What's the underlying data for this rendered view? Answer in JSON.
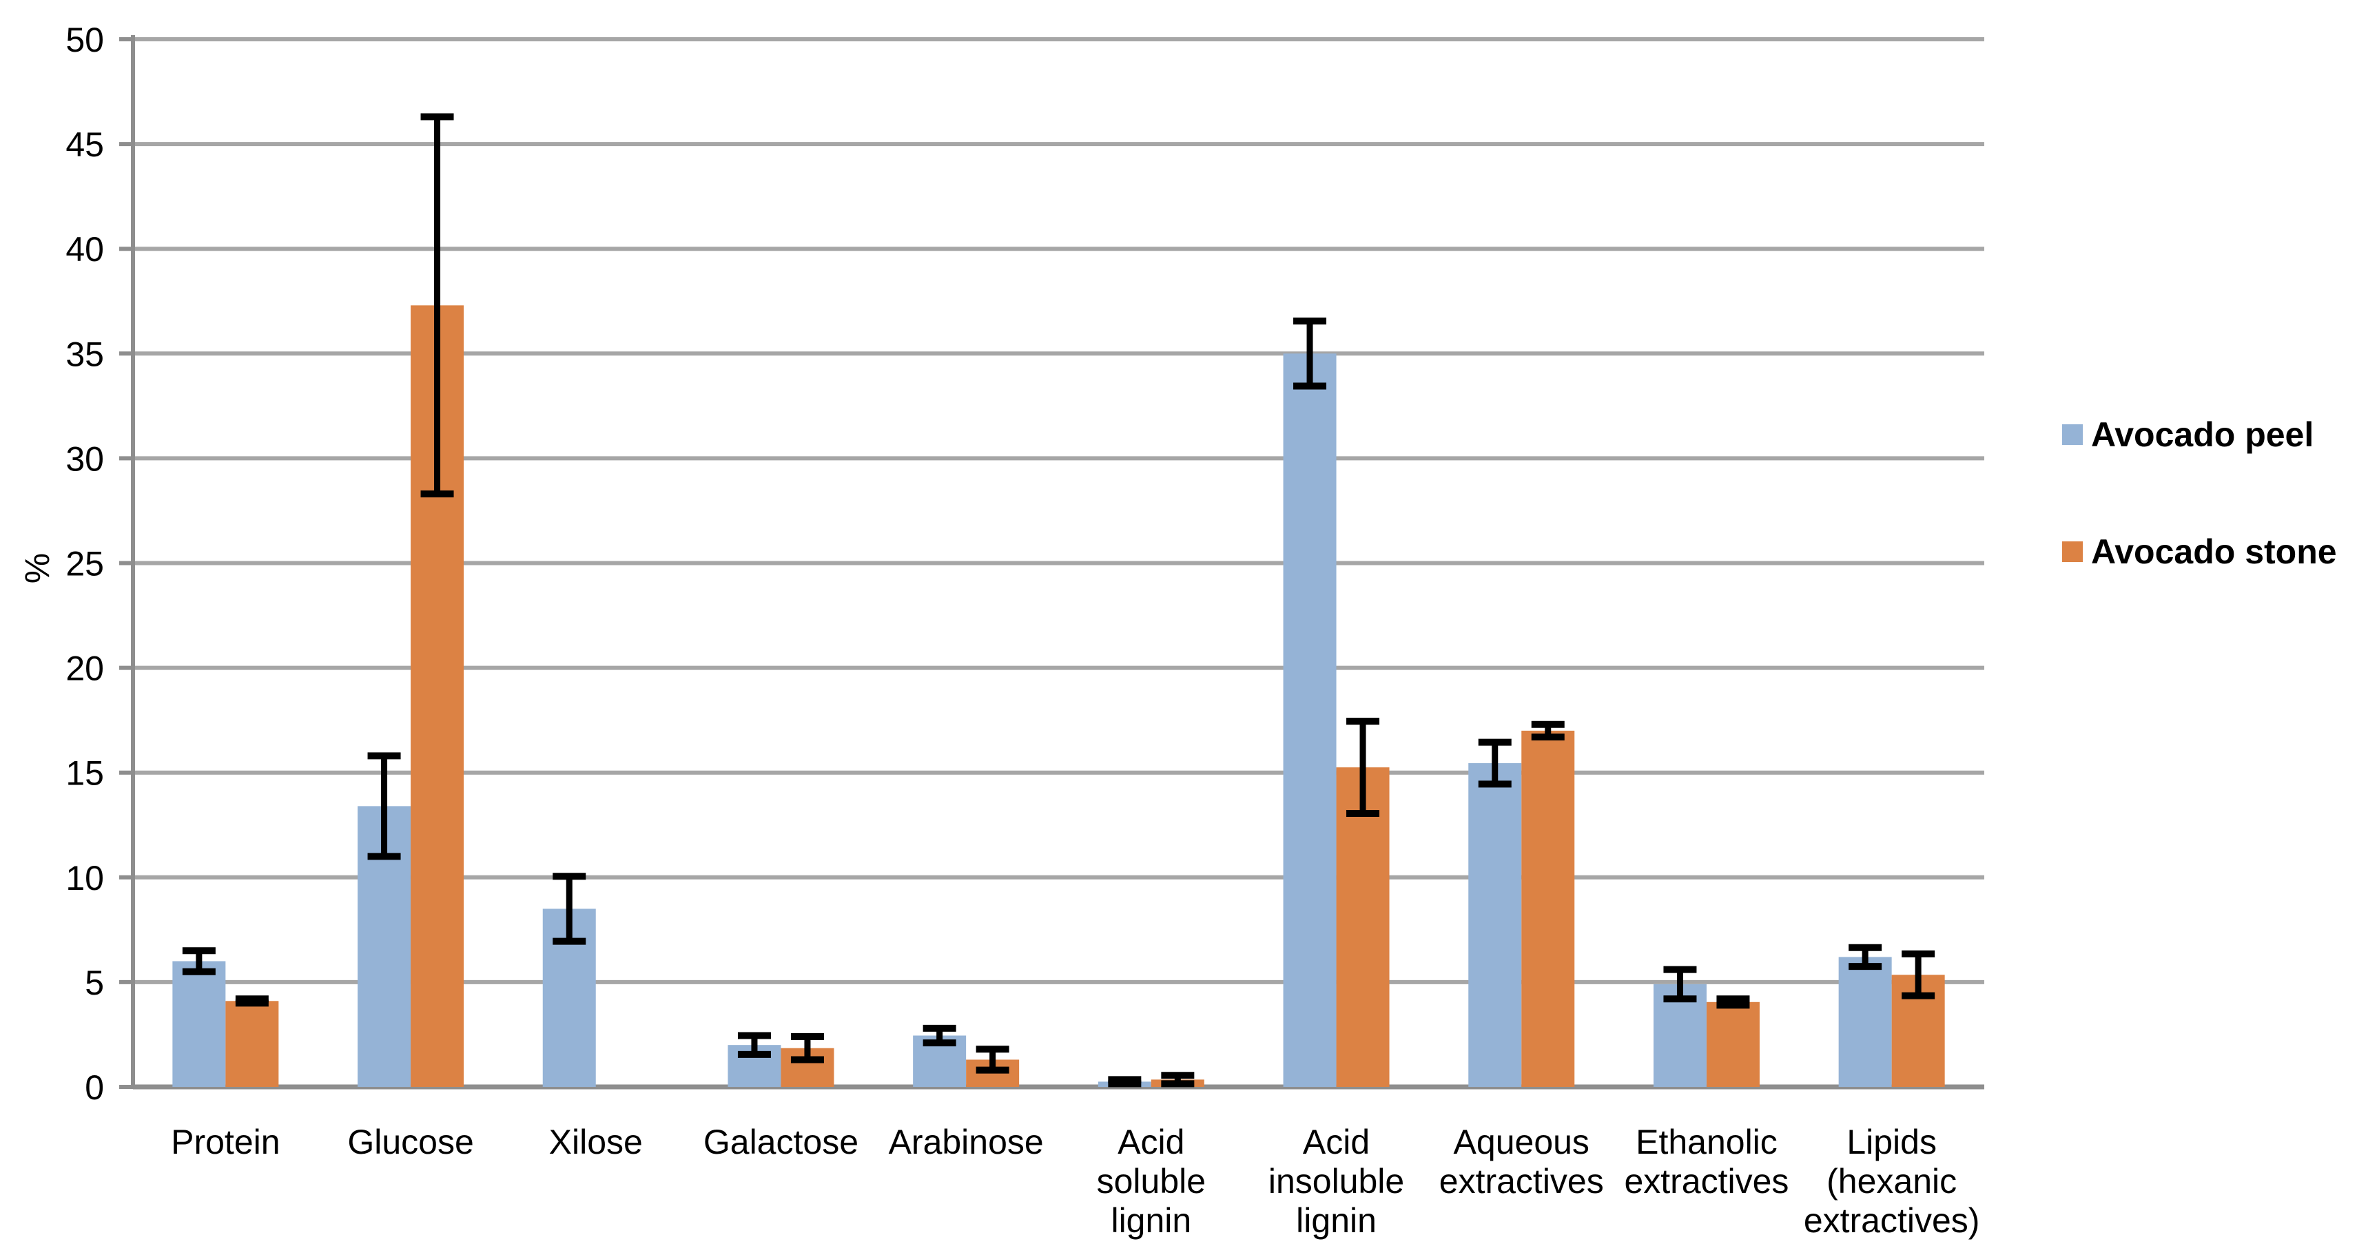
{
  "chart_data": {
    "type": "bar",
    "title": "",
    "ylabel": "%",
    "ylim": [
      0,
      50
    ],
    "ytick_step": 5,
    "grid": true,
    "legend_position": "right",
    "categories": [
      {
        "name": "Protein",
        "label_lines": [
          "Protein"
        ]
      },
      {
        "name": "Glucose",
        "label_lines": [
          "Glucose"
        ]
      },
      {
        "name": "Xilose",
        "label_lines": [
          "Xilose"
        ]
      },
      {
        "name": "Galactose",
        "label_lines": [
          "Galactose"
        ]
      },
      {
        "name": "Arabinose",
        "label_lines": [
          "Arabinose"
        ]
      },
      {
        "name": "Acid soluble lignin",
        "label_lines": [
          "Acid",
          "soluble",
          "lignin"
        ]
      },
      {
        "name": "Acid insoluble lignin",
        "label_lines": [
          "Acid",
          "insoluble",
          "lignin"
        ]
      },
      {
        "name": "Aqueous extractives",
        "label_lines": [
          "Aqueous",
          "extractives"
        ]
      },
      {
        "name": "Ethanolic extractives",
        "label_lines": [
          "Ethanolic",
          "extractives"
        ]
      },
      {
        "name": "Lipids (hexanic extractives)",
        "label_lines": [
          "Lipids",
          "(hexanic",
          "extractives)"
        ]
      }
    ],
    "series": [
      {
        "name": "Avocado peel",
        "color": "#95B3D6",
        "values": [
          6.0,
          13.4,
          8.5,
          2.0,
          2.45,
          0.25,
          35.0,
          15.45,
          4.9,
          6.2
        ],
        "errors": [
          0.5,
          2.4,
          1.55,
          0.45,
          0.35,
          0.1,
          1.55,
          1.0,
          0.7,
          0.45
        ]
      },
      {
        "name": "Avocado stone",
        "color": "#DC8244",
        "values": [
          4.1,
          37.3,
          0,
          1.85,
          1.3,
          0.35,
          15.25,
          17.0,
          4.05,
          5.35
        ],
        "errors": [
          0.1,
          9.0,
          0,
          0.55,
          0.5,
          0.2,
          2.2,
          0.3,
          0.15,
          1.0
        ]
      }
    ],
    "axis_color": "#8E8E8E",
    "gridline_color": "#A6A6A6",
    "error_bar_color": "#000000",
    "ytick_labels": [
      "0",
      "5",
      "10",
      "15",
      "20",
      "25",
      "30",
      "35",
      "40",
      "45",
      "50"
    ]
  }
}
